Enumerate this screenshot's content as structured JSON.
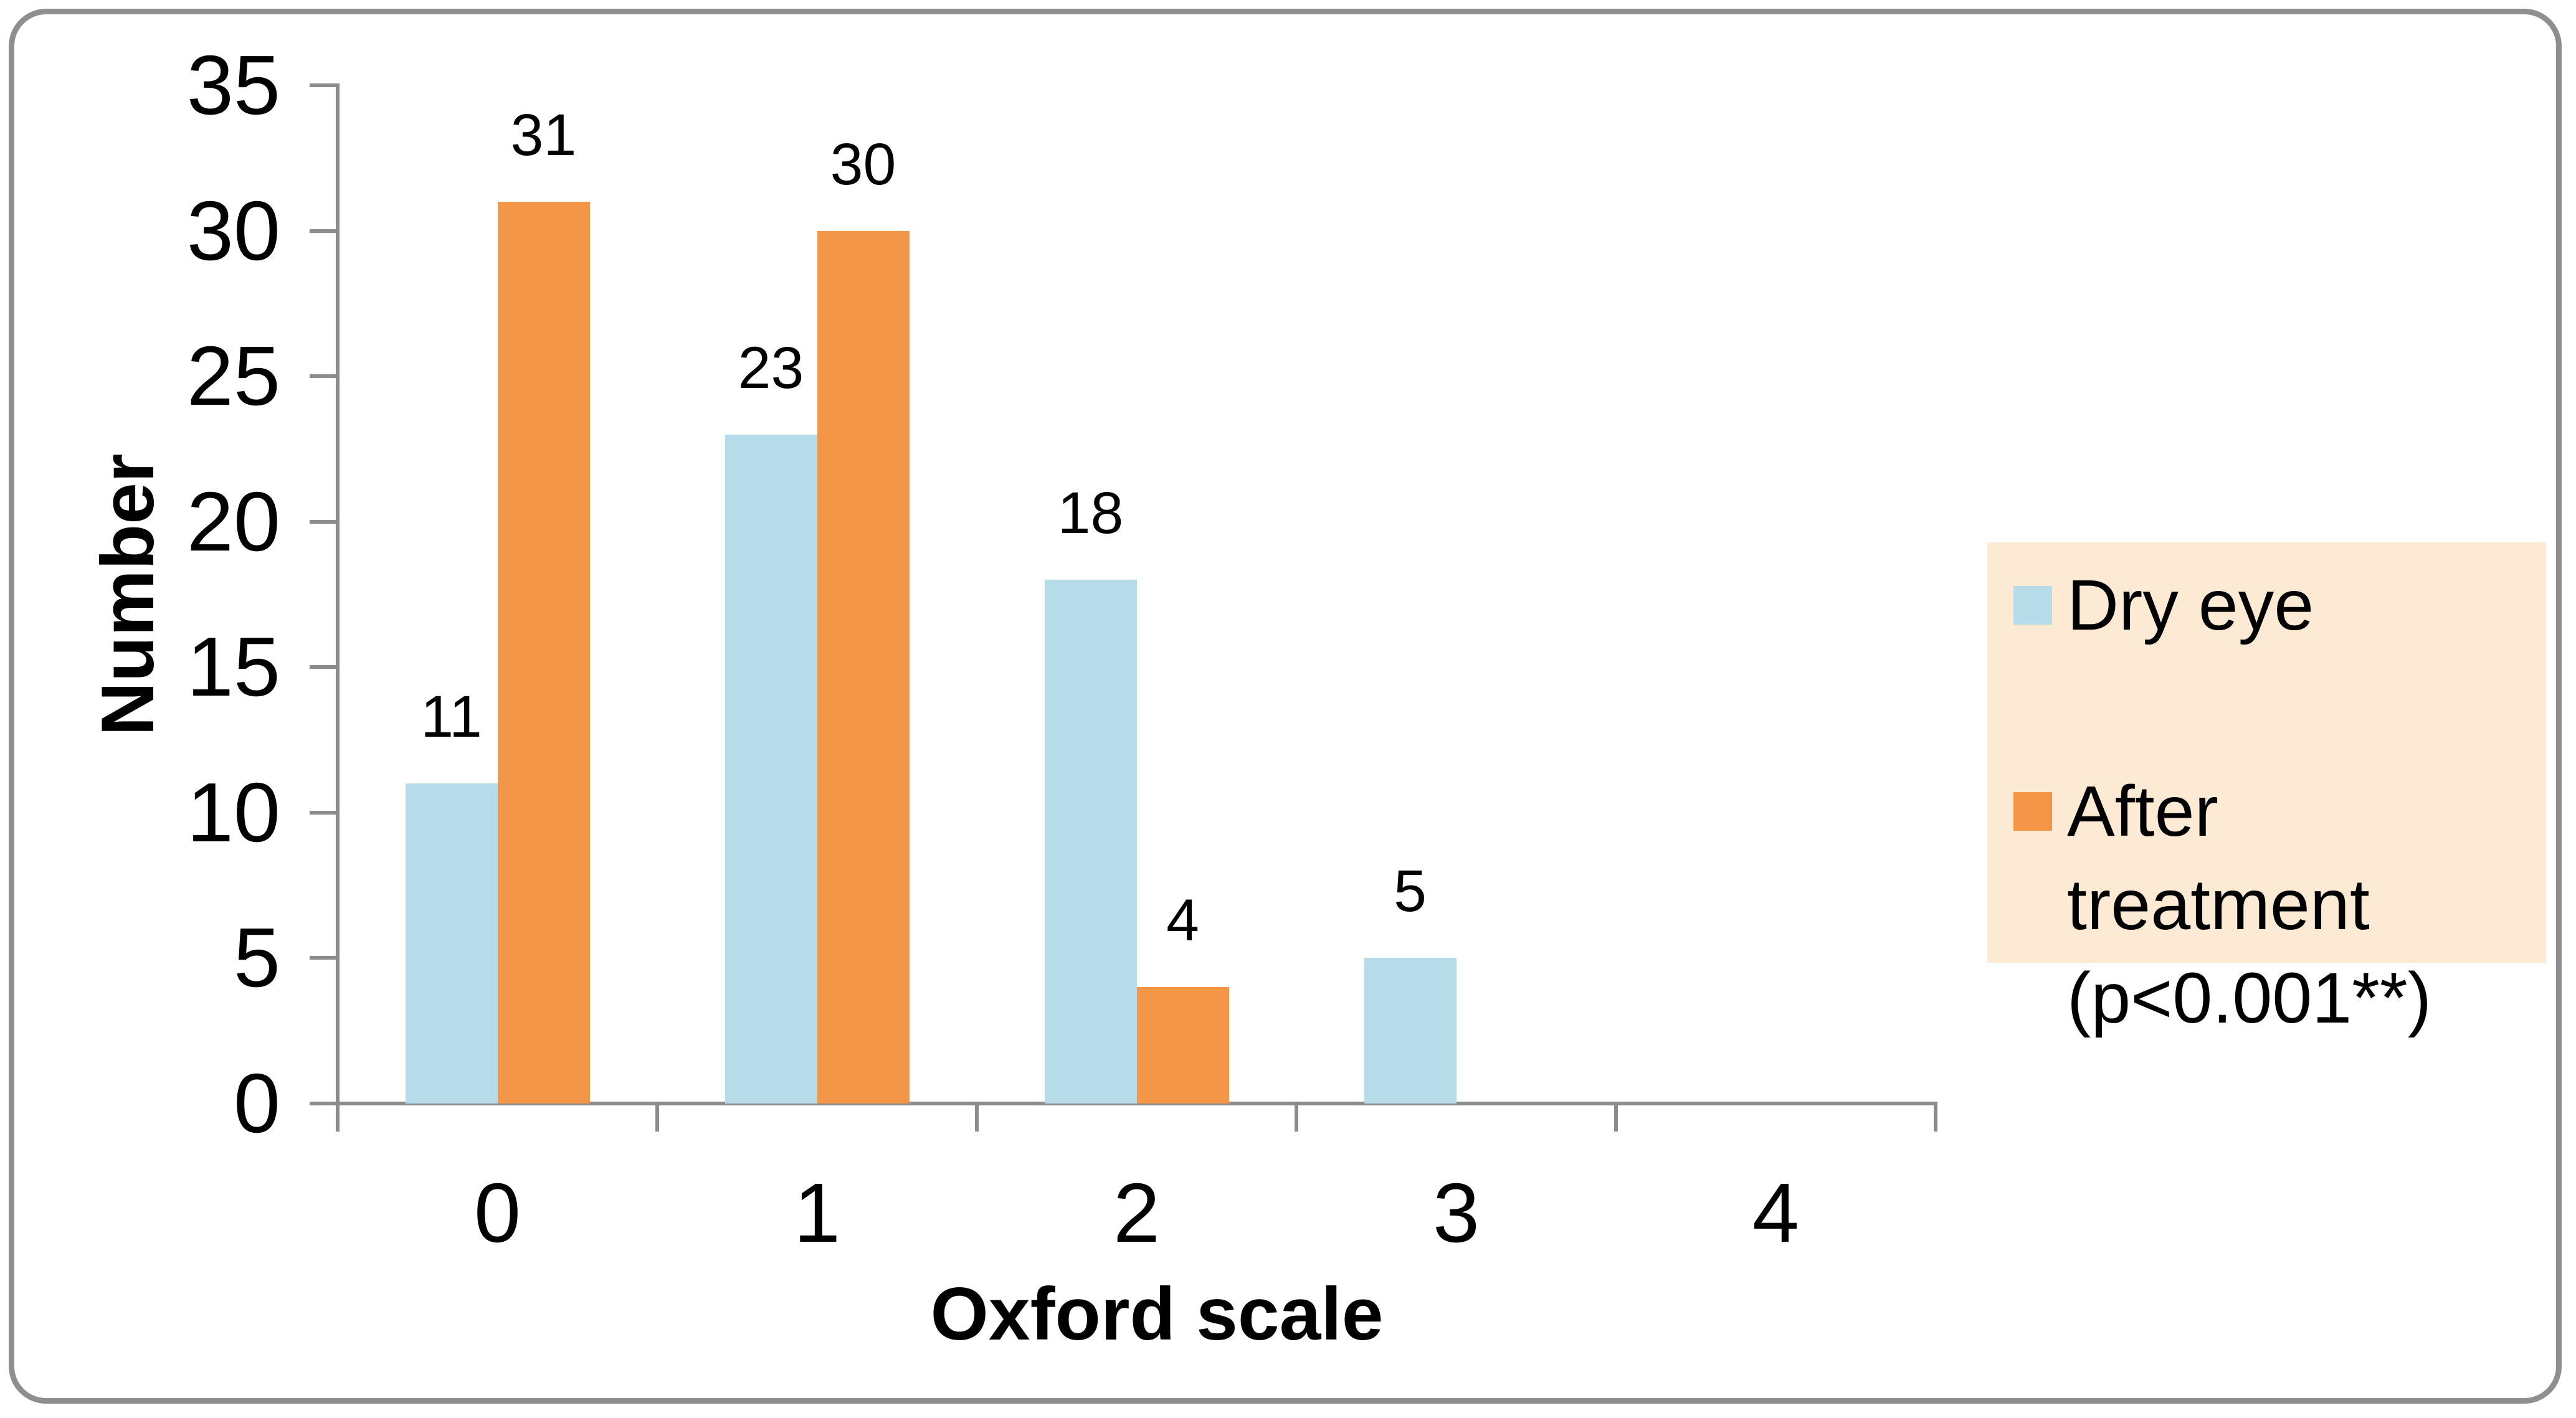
{
  "chart_data": {
    "type": "bar",
    "title": "",
    "xlabel": "Oxford scale",
    "ylabel": "Number",
    "categories": [
      "0",
      "1",
      "2",
      "3",
      "4"
    ],
    "series": [
      {
        "name": "Dry eye",
        "legend_lines": [
          "Dry eye"
        ],
        "color": "#B5DCE8",
        "values": [
          11,
          23,
          18,
          5,
          0
        ]
      },
      {
        "name": "After treatment (p<0.001**)",
        "legend_lines": [
          "After treatment",
          "(p<0.001**)"
        ],
        "color": "#F49647",
        "values": [
          31,
          30,
          4,
          0,
          0
        ]
      }
    ],
    "ylim": [
      0,
      35
    ],
    "yticks": [
      0,
      5,
      10,
      15,
      20,
      25,
      30,
      35
    ],
    "data_labels": true,
    "grid": false,
    "legend_position": "right"
  },
  "styles": {
    "legend_background": "#FCEAD5",
    "axis_color": "#8C8C8C",
    "border_color": "#8F8F8F",
    "text_color": "#000000",
    "plot_background": "#FFFFFF"
  }
}
